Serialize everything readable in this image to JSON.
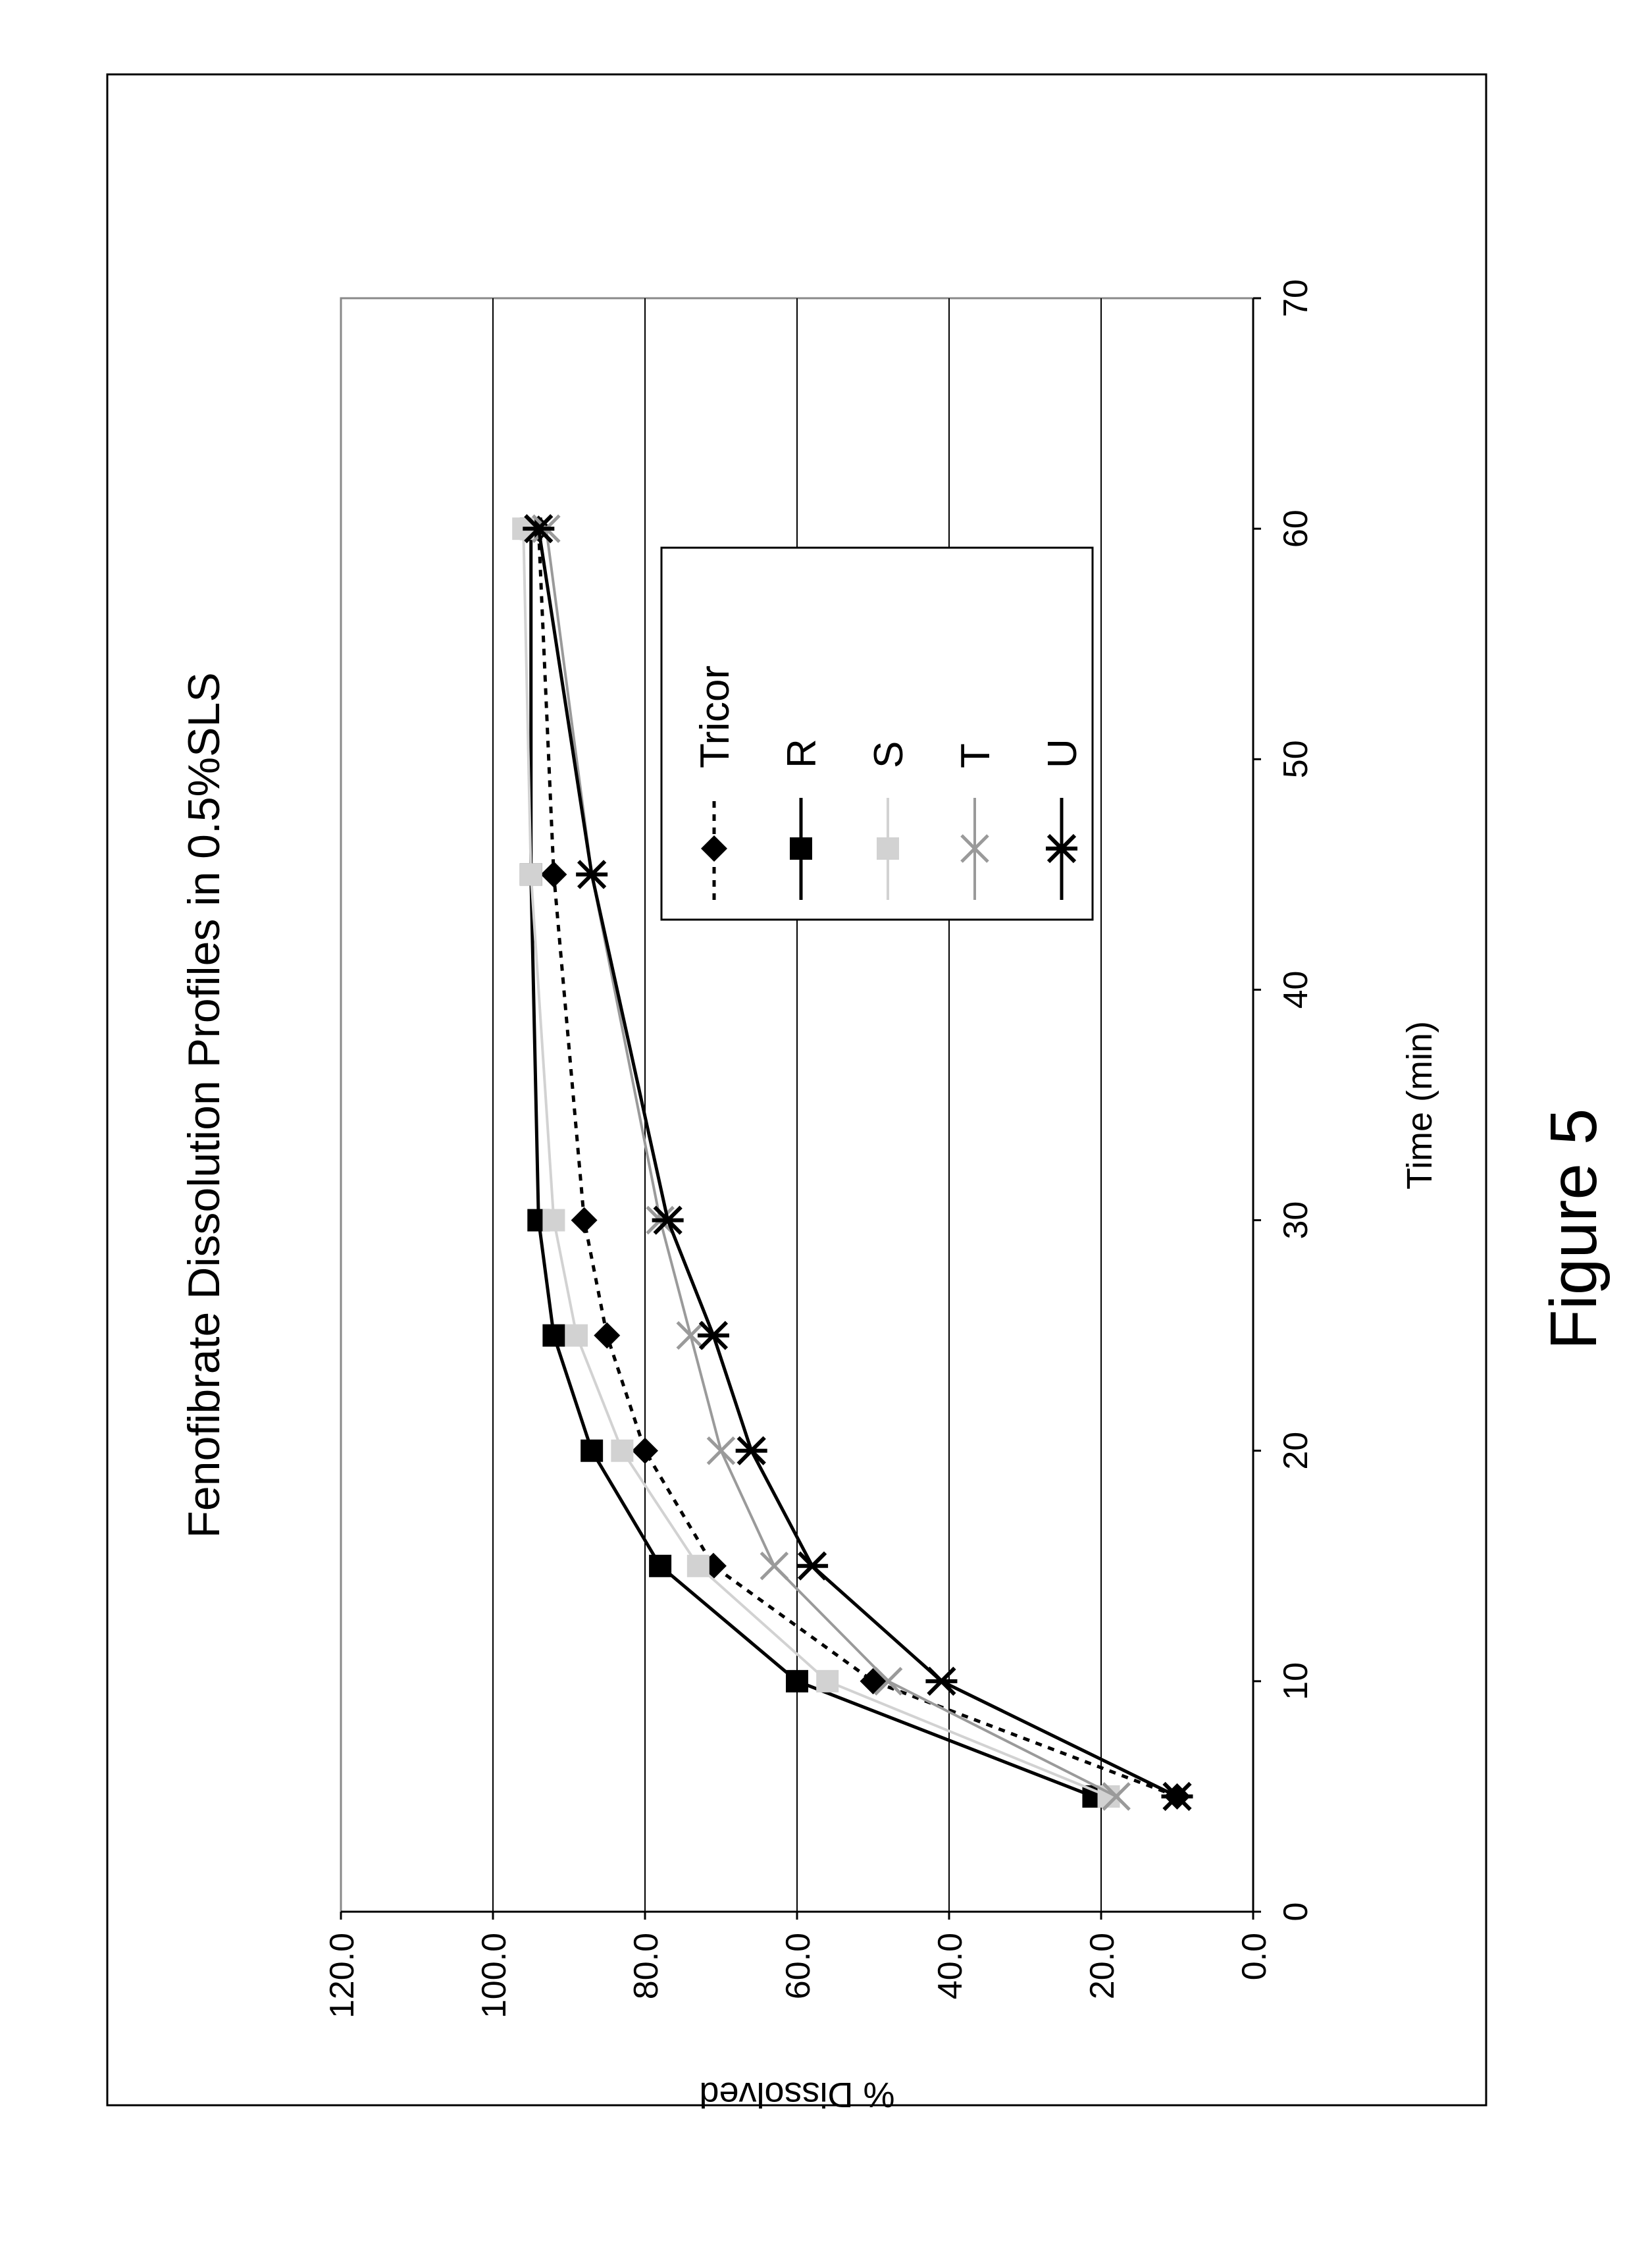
{
  "figure_label": "Figure 5",
  "chart_data": {
    "type": "line",
    "title": "Fenofibrate Dissolution Profiles in 0.5%SLS",
    "xlabel": "Time (min)",
    "ylabel": "% Dissolved",
    "xlim": [
      0,
      70
    ],
    "ylim": [
      0,
      120
    ],
    "x_ticks": [
      0,
      10,
      20,
      30,
      40,
      50,
      60,
      70
    ],
    "y_ticks": [
      "0.0",
      "20.0",
      "40.0",
      "60.0",
      "80.0",
      "100.0",
      "120.0"
    ],
    "grid": "horizontal major gridlines",
    "legend_position": "upper-right",
    "x": [
      5,
      10,
      15,
      20,
      25,
      30,
      45,
      60
    ],
    "series": [
      {
        "name": "Tricor",
        "marker": "diamond",
        "line": "dotted",
        "color": "#000000",
        "values": [
          10,
          50,
          71,
          80,
          85,
          88,
          92,
          94
        ]
      },
      {
        "name": "R",
        "marker": "square",
        "line": "solid",
        "color": "#000000",
        "values": [
          21,
          60,
          78,
          87,
          92,
          94,
          95,
          95
        ]
      },
      {
        "name": "S",
        "marker": "square",
        "line": "solid",
        "color": "#d2d2d2",
        "values": [
          19,
          56,
          73,
          83,
          89,
          92,
          95,
          96
        ]
      },
      {
        "name": "T",
        "marker": "x",
        "line": "solid",
        "color": "#9a9a9a",
        "values": [
          18,
          48,
          63,
          70,
          74,
          78,
          87,
          93
        ]
      },
      {
        "name": "U",
        "marker": "star",
        "line": "solid",
        "color": "#000000",
        "values": [
          10,
          41,
          58,
          66,
          71,
          77,
          87,
          94
        ]
      }
    ]
  }
}
